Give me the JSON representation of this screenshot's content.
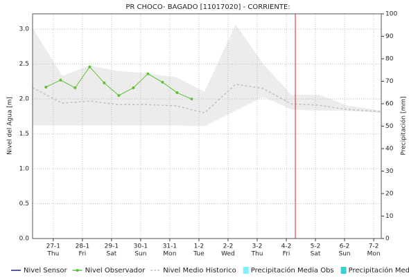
{
  "chart_data": {
    "type": "line",
    "title": "PR CHOCO- BAGADO [11017020] - CORRIENTE:",
    "ylabel": "Nivel del Agua [m]",
    "y2label": "Precipitación [mm]",
    "xlim": [
      -0.71,
      11.26
    ],
    "xticks": [
      {
        "value": 0,
        "label": "27-1"
      },
      {
        "value": 1,
        "label": "28-1"
      },
      {
        "value": 2,
        "label": "29-1"
      },
      {
        "value": 3,
        "label": "30-1"
      },
      {
        "value": 4,
        "label": "31-1"
      },
      {
        "value": 5,
        "label": "1-2"
      },
      {
        "value": 6,
        "label": "2-2"
      },
      {
        "value": 7,
        "label": "3-2"
      },
      {
        "value": 8,
        "label": "4-2"
      },
      {
        "value": 9,
        "label": "5-2"
      },
      {
        "value": 10,
        "label": "6-2"
      },
      {
        "value": 11,
        "label": "7-2"
      }
    ],
    "xtick_weekdays": [
      "Thu",
      "Fri",
      "Sat",
      "Sun",
      "Mon",
      "Tue",
      "Wed",
      "Thu",
      "Fri",
      "Sat",
      "Sun",
      "Mon"
    ],
    "ylim": [
      0,
      3.22
    ],
    "yticks": [
      {
        "value": 0,
        "label": "0.0"
      },
      0.5,
      {
        "value": 1,
        "label": "1.0"
      },
      1.5,
      {
        "value": 2,
        "label": "2.0"
      },
      2.5,
      {
        "value": 3,
        "label": "3.0"
      }
    ],
    "y2lim": [
      0,
      100
    ],
    "y2ticks": [
      0,
      10,
      20,
      30,
      40,
      50,
      60,
      70,
      80,
      90,
      100
    ],
    "grid": true,
    "current_time_x": 8.31,
    "current_time_color": "#e02020",
    "band": {
      "color": "#ececec",
      "x": [
        -0.71,
        0.31,
        1.26,
        2.21,
        3.17,
        4.24,
        5.19,
        6.26,
        7.21,
        8.17,
        9.12,
        10.07,
        11.26
      ],
      "upper": [
        3.02,
        2.33,
        2.48,
        2.4,
        2.37,
        2.31,
        2.1,
        3.07,
        2.5,
        2.06,
        2.06,
        1.91,
        1.83
      ],
      "lower": [
        1.62,
        1.62,
        1.62,
        1.62,
        1.62,
        1.62,
        1.61,
        1.83,
        2.03,
        1.85,
        1.83,
        1.83,
        1.8
      ]
    },
    "series": [
      {
        "name": "Nivel Sensor",
        "color": "#1a237e",
        "style": "solid",
        "x": [],
        "values": []
      },
      {
        "name": "Nivel Observador",
        "color": "#5cc232",
        "style": "dots",
        "x": [
          -0.25,
          0.25,
          0.75,
          1.25,
          1.75,
          2.25,
          2.75,
          3.25,
          3.75,
          4.25,
          4.75
        ],
        "values": [
          2.17,
          2.27,
          2.16,
          2.46,
          2.23,
          2.05,
          2.16,
          2.36,
          2.24,
          2.09,
          2.0
        ]
      },
      {
        "name": "Nivel Medio Historico",
        "color": "#bdbdbd",
        "style": "dashed",
        "x": [
          -0.71,
          0.31,
          1.26,
          2.21,
          3.17,
          4.24,
          5.19,
          6.26,
          7.21,
          8.17,
          9.12,
          10.07,
          11.26
        ],
        "values": [
          2.16,
          1.94,
          1.97,
          1.92,
          1.92,
          1.9,
          1.8,
          2.21,
          2.15,
          1.93,
          1.91,
          1.85,
          1.82
        ]
      },
      {
        "name": "Precipitación Media Obs",
        "color": "#7ff0ff",
        "style": "box",
        "axis": "y2",
        "x": [],
        "values": []
      },
      {
        "name": "Precipitación Media Pro",
        "color": "#3ccfcf",
        "style": "box",
        "axis": "y2",
        "x": [],
        "values": []
      }
    ]
  }
}
